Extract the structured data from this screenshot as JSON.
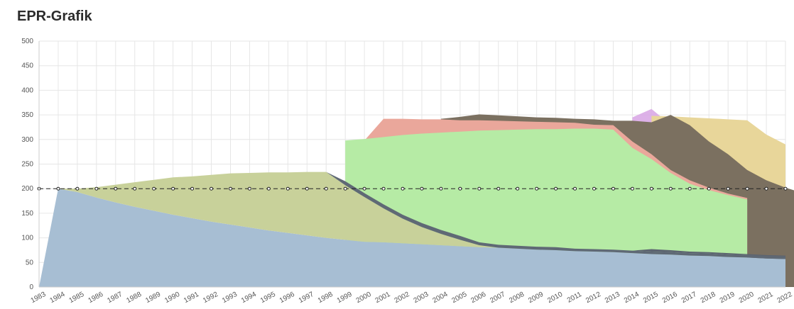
{
  "page_title": "EPR-Grafik",
  "chart_data": {
    "type": "area",
    "title": "EPR-Grafik",
    "xlabel": "",
    "ylabel": "",
    "ylim": [
      0,
      500
    ],
    "yticks": [
      "0",
      "50",
      "100",
      "150",
      "200",
      "250",
      "300",
      "350",
      "400",
      "450",
      "500"
    ],
    "categories": [
      "1983",
      "1984",
      "1985",
      "1986",
      "1987",
      "1988",
      "1989",
      "1990",
      "1991",
      "1992",
      "1993",
      "1994",
      "1995",
      "1996",
      "1997",
      "1998",
      "1999",
      "2000",
      "2001",
      "2002",
      "2003",
      "2004",
      "2005",
      "2006",
      "2007",
      "2008",
      "2009",
      "2010",
      "2011",
      "2012",
      "2013",
      "2014",
      "2015",
      "2016",
      "2017",
      "2018",
      "2019",
      "2020",
      "2021",
      "2022"
    ],
    "grid": true,
    "legend": "none",
    "series": [
      {
        "color": "#a7bed3",
        "values": [
          0,
          200,
          193,
          182,
          172,
          163,
          155,
          147,
          140,
          133,
          127,
          121,
          115,
          110,
          105,
          100,
          96,
          92,
          91,
          89,
          87,
          85,
          83,
          81,
          80,
          78,
          76,
          75,
          73,
          72,
          71,
          69,
          67,
          66,
          64,
          63,
          61,
          60,
          58,
          57
        ]
      },
      {
        "color": "#c8d19a",
        "values": [
          0,
          0,
          7,
          21,
          36,
          50,
          63,
          76,
          85,
          95,
          104,
          111,
          118,
          123,
          129,
          134,
          111,
          91,
          69,
          50,
          35,
          23,
          13,
          4,
          0,
          0,
          0,
          0,
          0,
          0,
          0,
          0,
          0,
          0,
          0,
          0,
          0,
          0,
          0,
          0
        ]
      },
      {
        "color": "#5f6975",
        "values": [
          0,
          0,
          0,
          0,
          0,
          0,
          0,
          0,
          0,
          0,
          0,
          0,
          0,
          0,
          0,
          0,
          8,
          8,
          8,
          8,
          8,
          8,
          8,
          6,
          6,
          6,
          6,
          6,
          5,
          5,
          5,
          5,
          5,
          5,
          5,
          5,
          5,
          5,
          5,
          5
        ]
      },
      {
        "color": "#5c6470",
        "values": [
          0,
          0,
          0,
          0,
          0,
          0,
          0,
          0,
          0,
          0,
          0,
          0,
          0,
          0,
          0,
          0,
          0,
          0,
          0,
          0,
          0,
          0,
          0,
          0,
          0,
          0,
          0,
          0,
          0,
          0,
          0,
          0,
          5,
          4,
          3,
          3,
          3,
          2,
          2,
          2
        ]
      },
      {
        "color": "#b6eba5",
        "values": [
          0,
          0,
          0,
          0,
          0,
          0,
          0,
          0,
          0,
          0,
          0,
          0,
          0,
          0,
          0,
          0,
          0,
          0,
          0,
          0,
          0,
          0,
          0,
          0,
          0,
          0,
          0,
          0,
          0,
          0,
          0,
          0,
          0,
          0,
          0,
          0,
          0,
          0,
          0,
          0
        ]
      },
      {
        "color": "#eaa79b",
        "values": [
          0,
          0,
          0,
          0,
          0,
          0,
          0,
          0,
          0,
          0,
          0,
          0,
          0,
          0,
          0,
          0,
          0,
          0,
          0,
          0,
          0,
          0,
          0,
          0,
          0,
          0,
          0,
          0,
          0,
          0,
          0,
          0,
          0,
          0,
          0,
          0,
          0,
          0,
          0,
          0
        ]
      },
      {
        "color": "#8c7f6d",
        "values": [
          0,
          0,
          0,
          0,
          0,
          0,
          0,
          0,
          0,
          0,
          0,
          0,
          0,
          0,
          0,
          0,
          0,
          0,
          0,
          0,
          0,
          0,
          0,
          0,
          0,
          0,
          0,
          0,
          0,
          0,
          0,
          0,
          0,
          0,
          0,
          0,
          0,
          0,
          0,
          0
        ]
      },
      {
        "color": "#e8d69a",
        "values": [
          0,
          0,
          0,
          0,
          0,
          0,
          0,
          0,
          0,
          0,
          0,
          0,
          0,
          0,
          0,
          0,
          0,
          0,
          0,
          0,
          0,
          0,
          0,
          0,
          0,
          0,
          0,
          0,
          0,
          0,
          0,
          0,
          0,
          0,
          0,
          0,
          0,
          0,
          0,
          0
        ]
      },
      {
        "color": "#d9a8e6",
        "values": [
          0,
          0,
          0,
          0,
          0,
          0,
          0,
          0,
          0,
          0,
          0,
          0,
          0,
          0,
          0,
          0,
          0,
          0,
          0,
          0,
          0,
          0,
          0,
          0,
          0,
          0,
          0,
          0,
          0,
          0,
          0,
          0,
          0,
          0,
          0,
          0,
          0,
          0,
          0,
          0
        ]
      }
    ],
    "layers_top": [
      {
        "color": "#b6eba5",
        "from": "1999",
        "values": [
          298,
          301,
          305,
          309,
          312,
          314,
          316,
          318,
          319,
          320,
          321,
          321,
          322,
          322,
          320,
          283,
          260,
          232,
          210,
          197,
          187,
          178
        ]
      },
      {
        "color": "#eaa79b",
        "from": "2000",
        "values": [
          298,
          342,
          342,
          341,
          341,
          339,
          339,
          338,
          337,
          336,
          335,
          334,
          330,
          329,
          296,
          270,
          238,
          217,
          202,
          190,
          181
        ]
      },
      {
        "color": "#7b7060",
        "from": "2004",
        "values": [
          342,
          346,
          351,
          349,
          347,
          345,
          344,
          342,
          341,
          338,
          338,
          335,
          350,
          329,
          296,
          270,
          238,
          217,
          202,
          190,
          181
        ]
      },
      {
        "color": "#e8d69a",
        "from": "2015",
        "values": [
          348,
          347,
          345,
          343,
          341,
          339,
          310,
          290
        ]
      },
      {
        "color": "#d9a8e6",
        "from": "2014",
        "values": [
          345,
          362,
          330,
          300,
          270,
          245,
          222,
          204,
          203
        ]
      }
    ],
    "reference_line": {
      "label": "",
      "value": 200,
      "style": "dashed",
      "color": "#222222"
    }
  }
}
